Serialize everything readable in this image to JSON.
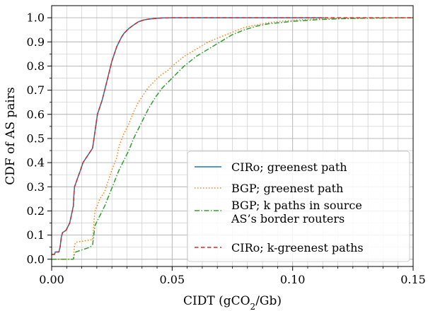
{
  "chart_data": {
    "type": "line",
    "title": "",
    "xlabel": "CIDT (gCO",
    "xlabel_sub": "2",
    "xlabel_tail": "/Gb)",
    "ylabel": "CDF of AS pairs",
    "xlim": [
      0.0,
      0.15
    ],
    "ylim": [
      -0.03,
      1.05
    ],
    "xticks": [
      0.0,
      0.05,
      0.1,
      0.15
    ],
    "xtick_labels": [
      "0.00",
      "0.05",
      "0.10",
      "0.15"
    ],
    "xminor": [
      0.00625,
      0.0125,
      0.01875,
      0.025,
      0.03125,
      0.0375,
      0.04375,
      0.05625,
      0.0625,
      0.06875,
      0.075,
      0.08125,
      0.0875,
      0.09375,
      0.10625,
      0.1125,
      0.11875,
      0.125,
      0.13125,
      0.1375,
      0.14375
    ],
    "yticks": [
      0.0,
      0.1,
      0.2,
      0.3,
      0.4,
      0.5,
      0.6,
      0.7,
      0.8,
      0.9,
      1.0
    ],
    "ytick_labels": [
      "0.0",
      "0.1",
      "0.2",
      "0.3",
      "0.4",
      "0.5",
      "0.6",
      "0.7",
      "0.8",
      "0.9",
      "1.0"
    ],
    "grid": true,
    "legend_position": "bottom-right",
    "series": [
      {
        "name": "CIRo; greenest path",
        "color": "#1f77b4",
        "dash": "solid",
        "x": [
          0,
          0.0012,
          0.0015,
          0.003,
          0.0035,
          0.004,
          0.0045,
          0.006,
          0.0075,
          0.009,
          0.0092,
          0.0095,
          0.012,
          0.013,
          0.015,
          0.017,
          0.018,
          0.019,
          0.02,
          0.021,
          0.022,
          0.023,
          0.024,
          0.025,
          0.026,
          0.027,
          0.028,
          0.029,
          0.03,
          0.032,
          0.034,
          0.036,
          0.038,
          0.04,
          0.043,
          0.046,
          0.05,
          0.06,
          0.08,
          0.1,
          0.113
        ],
        "y": [
          0.02,
          0.02,
          0.03,
          0.03,
          0.05,
          0.09,
          0.11,
          0.12,
          0.15,
          0.22,
          0.26,
          0.3,
          0.37,
          0.4,
          0.43,
          0.46,
          0.53,
          0.6,
          0.63,
          0.66,
          0.7,
          0.74,
          0.78,
          0.82,
          0.85,
          0.88,
          0.9,
          0.92,
          0.935,
          0.955,
          0.97,
          0.983,
          0.99,
          0.994,
          0.997,
          0.999,
          1.0,
          1.0,
          1.0,
          1.0,
          1.0
        ]
      },
      {
        "name": "BGP; greenest path",
        "color": "#ff7f0e",
        "dash": "dotted",
        "x": [
          0,
          0.009,
          0.0095,
          0.01,
          0.016,
          0.017,
          0.0175,
          0.018,
          0.02,
          0.022,
          0.023,
          0.025,
          0.027,
          0.028,
          0.03,
          0.032,
          0.034,
          0.036,
          0.038,
          0.04,
          0.042,
          0.045,
          0.048,
          0.05,
          0.055,
          0.06,
          0.065,
          0.07,
          0.075,
          0.08,
          0.085,
          0.09,
          0.1,
          0.11,
          0.12,
          0.13,
          0.15
        ],
        "y": [
          0,
          0,
          0.06,
          0.07,
          0.08,
          0.08,
          0.15,
          0.2,
          0.25,
          0.28,
          0.31,
          0.37,
          0.42,
          0.47,
          0.52,
          0.56,
          0.61,
          0.65,
          0.68,
          0.71,
          0.73,
          0.76,
          0.78,
          0.8,
          0.84,
          0.87,
          0.9,
          0.92,
          0.94,
          0.96,
          0.97,
          0.98,
          0.99,
          0.995,
          0.997,
          0.999,
          1.0
        ]
      },
      {
        "name": "BGP; k paths in source AS’s border routers",
        "color": "#2ca02c",
        "dash": "dashdot",
        "x": [
          0,
          0.009,
          0.0095,
          0.01,
          0.016,
          0.017,
          0.0175,
          0.018,
          0.02,
          0.022,
          0.024,
          0.026,
          0.028,
          0.03,
          0.032,
          0.034,
          0.036,
          0.038,
          0.04,
          0.043,
          0.046,
          0.05,
          0.055,
          0.06,
          0.065,
          0.07,
          0.075,
          0.08,
          0.085,
          0.09,
          0.1,
          0.11,
          0.12,
          0.13,
          0.15
        ],
        "y": [
          0,
          0,
          0.02,
          0.03,
          0.05,
          0.06,
          0.1,
          0.14,
          0.18,
          0.22,
          0.27,
          0.32,
          0.37,
          0.41,
          0.45,
          0.5,
          0.54,
          0.58,
          0.62,
          0.67,
          0.71,
          0.75,
          0.8,
          0.84,
          0.87,
          0.9,
          0.93,
          0.95,
          0.965,
          0.975,
          0.985,
          0.992,
          0.996,
          0.998,
          1.0
        ]
      },
      {
        "name": "CIRo; k-greenest paths",
        "color": "#d62728",
        "dash": "dashed",
        "x": [
          0,
          0.0012,
          0.0015,
          0.003,
          0.0035,
          0.004,
          0.0045,
          0.006,
          0.0075,
          0.009,
          0.0092,
          0.0095,
          0.012,
          0.013,
          0.015,
          0.017,
          0.018,
          0.019,
          0.02,
          0.021,
          0.022,
          0.023,
          0.024,
          0.025,
          0.026,
          0.027,
          0.028,
          0.029,
          0.03,
          0.032,
          0.034,
          0.036,
          0.038,
          0.04,
          0.043,
          0.046,
          0.05,
          0.06,
          0.08,
          0.1,
          0.15
        ],
        "y": [
          0.02,
          0.02,
          0.03,
          0.03,
          0.05,
          0.09,
          0.11,
          0.12,
          0.15,
          0.22,
          0.26,
          0.3,
          0.37,
          0.4,
          0.43,
          0.46,
          0.53,
          0.6,
          0.63,
          0.66,
          0.7,
          0.74,
          0.78,
          0.82,
          0.85,
          0.88,
          0.9,
          0.92,
          0.935,
          0.955,
          0.97,
          0.983,
          0.99,
          0.994,
          0.997,
          0.999,
          1.0,
          1.0,
          1.0,
          1.0,
          1.0
        ]
      }
    ],
    "legend_lines": [
      [
        "CIRo; greenest path"
      ],
      [
        "BGP; greenest path"
      ],
      [
        "BGP; k paths in source",
        "AS’s border routers"
      ],
      [
        "CIRo; k-greenest paths"
      ]
    ]
  }
}
